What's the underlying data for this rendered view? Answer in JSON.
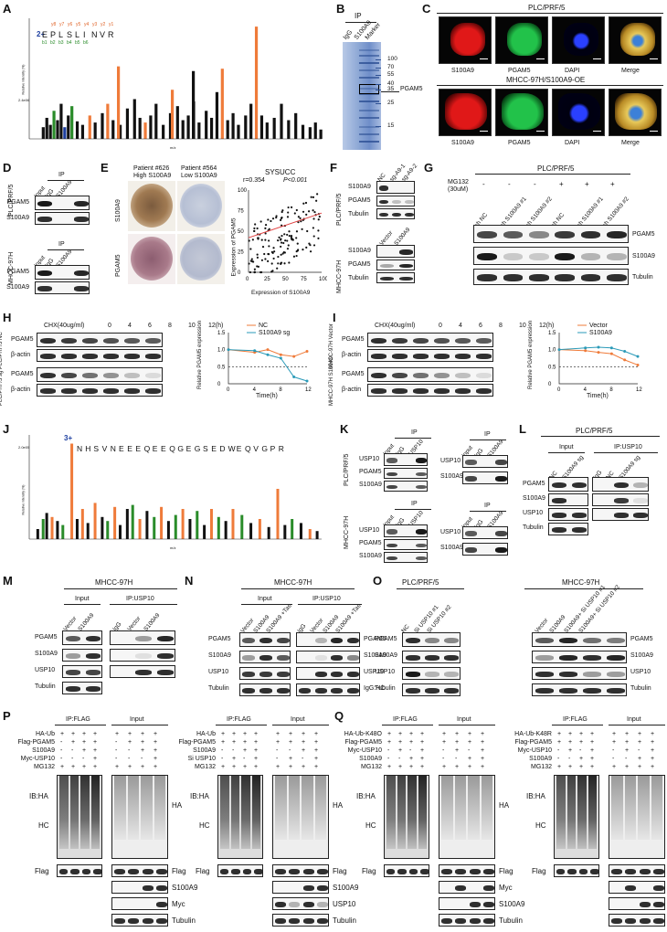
{
  "panels": [
    "A",
    "B",
    "C",
    "D",
    "E",
    "F",
    "G",
    "H",
    "I",
    "J",
    "K",
    "L",
    "M",
    "N",
    "O",
    "P",
    "Q"
  ],
  "A": {
    "charge": "2+",
    "peptide": [
      "E",
      "P",
      "L",
      "S",
      "L",
      "I",
      "N",
      "V",
      "R"
    ],
    "y_ions": [
      "y8",
      "y7",
      "y6",
      "y5",
      "y4",
      "y3",
      "y2",
      "y1"
    ],
    "b_ions": [
      "b1",
      "b2",
      "b3",
      "b4",
      "b5",
      "b6"
    ],
    "ylabel": "Relative intensity (%)",
    "xlabel": "m/z",
    "ytop": "2.4e06"
  },
  "B": {
    "ip": "IP",
    "lanes": [
      "IgG",
      "S100A9",
      "Marker"
    ],
    "markers": [
      "100",
      "70",
      "55",
      "40",
      "35",
      "25",
      "15"
    ],
    "box_label": "PGAM5"
  },
  "C": {
    "title1": "PLC/PRF/5",
    "title2": "MHCC-97H/S100A9-OE",
    "labels": [
      "S100A9",
      "PGAM5",
      "DAPI",
      "Merge"
    ]
  },
  "D": {
    "cell1": "PLC/PRF/5",
    "cell2": "MHCC-97H",
    "ip": "IP",
    "lanes": [
      "Input",
      "IgG",
      "S100A9"
    ],
    "rows": [
      "PGAM5",
      "S100A9"
    ]
  },
  "E": {
    "p1": "Patient #626",
    "p1s": "High S100A9",
    "p2": "Patient #564",
    "p2s": "Low S100A9",
    "rows": [
      "S100A9",
      "PGAM5"
    ],
    "scatter_title": "SYSUCC",
    "r": "r=0.354",
    "p": "P<0.001",
    "xlabel": "Expression of S100A9",
    "ylabel": "Expression of PGAM5",
    "xticks": [
      "0",
      "25",
      "50",
      "75",
      "100"
    ],
    "yticks": [
      "0",
      "25",
      "50",
      "75",
      "100"
    ]
  },
  "F": {
    "cell1": "PLC/PRF/5",
    "cell2": "MHCC-97H",
    "lanes1": [
      "NC",
      "sg-A9-1",
      "sg-A9-2"
    ],
    "rows1": [
      "S100A9",
      "PGAM5",
      "Tubulin"
    ],
    "lanes2": [
      "Vector",
      "S100A9"
    ],
    "rows2": [
      "S100A9",
      "PGAM5",
      "Tubulin"
    ]
  },
  "G": {
    "title": "PLC/PRF/5",
    "mg132": "MG132",
    "mg132_sub": "(30uM)",
    "signs": [
      "-",
      "-",
      "-",
      "+",
      "+",
      "+"
    ],
    "lanes": [
      "sh NC",
      "sh S100A9 #1",
      "sh S100A9 #2",
      "sh NC",
      "sh S100A9 #1",
      "sh S100A9 #2"
    ],
    "rows": [
      "PGAM5",
      "S100A9",
      "Tubulin"
    ]
  },
  "H": {
    "chx": "CHX(40ug/ml)",
    "times": [
      "0",
      "4",
      "6",
      "8",
      "10",
      "12(h)"
    ],
    "groups": [
      "PLC/PRF/5 NC",
      "PLC/PRF/5 sg"
    ],
    "rows": [
      "PGAM5",
      "β-actin"
    ],
    "ylabel": "Relative PGAM5 expression",
    "xlabel": "Time(h)",
    "legend": [
      "NC",
      "S100A9 sg"
    ]
  },
  "I": {
    "chx": "CHX(40ug/ml)",
    "times": [
      "0",
      "4",
      "6",
      "8",
      "10",
      "12(h)"
    ],
    "groups": [
      "MHCC-97H Vector",
      "MHCC-97H S100A9"
    ],
    "rows": [
      "PGAM5",
      "β-actin"
    ],
    "ylabel": "Relative PGAM5 expression",
    "xlabel": "Time(h)",
    "legend": [
      "Vector",
      "S100A9"
    ]
  },
  "J": {
    "charge": "3+",
    "peptide": [
      "N",
      "H",
      "S",
      "V",
      "N",
      "E",
      "E",
      "E",
      "Q",
      "E",
      "E",
      "Q",
      "G",
      "E",
      "G",
      "S",
      "E",
      "D",
      "W",
      "E",
      "Q",
      "V",
      "G",
      "P",
      "R"
    ],
    "ylabel": "Relative intensity (%)",
    "xlabel": "m/z",
    "ytop": "2.0e05"
  },
  "K": {
    "cell1": "PLC/PRF/5",
    "cell2": "MHCC-97H",
    "ip": "IP",
    "lanes_a": [
      "Input",
      "IgG",
      "USP10"
    ],
    "rows_a": [
      "USP10",
      "PGAM5",
      "S100A9"
    ],
    "lanes_b": [
      "Input",
      "IgG",
      "S100A9"
    ],
    "rows_b": [
      "USP10",
      "S100A9"
    ]
  },
  "L": {
    "title": "PLC/PRF/5",
    "input": "Input",
    "ipusp": "IP:USP10",
    "lanes": [
      "NC",
      "S100A9 sg",
      "IgG",
      "NC",
      "S100A9 sg"
    ],
    "rows": [
      "PGAM5",
      "S100A9",
      "USP10",
      "Tubulin"
    ]
  },
  "M": {
    "title": "MHCC-97H",
    "input": "Input",
    "ipusp": "IP:USP10",
    "lanes": [
      "Vector",
      "S100A9",
      "IgG",
      "Vector",
      "S100A9"
    ],
    "rows": [
      "PGAM5",
      "S100A9",
      "USP10",
      "Tubulin"
    ]
  },
  "N": {
    "title": "MHCC-97H",
    "input": "Input",
    "ipusp": "IP:USP10",
    "lanes": [
      "Vector",
      "S100A9",
      "S100A9 +Tas",
      "IgG",
      "Vector",
      "S100A9",
      "S100A9 +Tas"
    ],
    "rows": [
      "PGAM5",
      "S100A9",
      "USP10",
      "Tubulin"
    ],
    "rows_right": [
      "PGAM5",
      "S100A9",
      "USP10",
      "IgG:HC"
    ]
  },
  "O": {
    "cell1": "PLC/PRF/5",
    "cell2": "MHCC-97H",
    "lanes1": [
      "NC",
      "Si USP10 #1",
      "Si USP10 #2"
    ],
    "lanes2": [
      "Vector",
      "S100A9",
      "S100A9+ Si USP10 #1",
      "S100A9+ Si USP10 #2"
    ],
    "rows": [
      "PGAM5",
      "S100A9",
      "USP10",
      "Tubulin"
    ]
  },
  "P": {
    "ipflag": "IP:FLAG",
    "input": "Input",
    "conds1": [
      "HA-Ub",
      "Flag-PGAM5",
      "S100A9",
      "Myc-USP10",
      "MG132"
    ],
    "conds2": [
      "HA-Ub",
      "Flag-PGAM5",
      "S100A9",
      "Si USP10",
      "MG132"
    ],
    "signs1": [
      [
        "+",
        "+",
        "+",
        "+"
      ],
      [
        "-",
        "+",
        "+",
        "+"
      ],
      [
        "-",
        "-",
        "+",
        "+"
      ],
      [
        "-",
        "-",
        "-",
        "+"
      ],
      [
        "+",
        "+",
        "+",
        "+"
      ]
    ],
    "signs2": [
      [
        "+",
        "+",
        "+",
        "+"
      ],
      [
        "+",
        "+",
        "+",
        "+"
      ],
      [
        "-",
        "-",
        "+",
        "+"
      ],
      [
        "-",
        "+",
        "-",
        "+"
      ],
      [
        "+",
        "+",
        "+",
        "+"
      ]
    ],
    "ib": "IB:HA",
    "hc": "HC",
    "ha": "HA",
    "flag": "Flag",
    "rows1": [
      "S100A9",
      "Myc",
      "Tubulin"
    ],
    "rows2": [
      "S100A9",
      "USP10",
      "Tubulin"
    ]
  },
  "Q": {
    "ipflag": "IP:FLAG",
    "input": "Input",
    "conds1": [
      "HA-Ub-K48O",
      "Flag-PGAM5",
      "Myc-USP10",
      "S100A9",
      "MG132"
    ],
    "conds2": [
      "HA-Ub-K48R",
      "Flag-PGAM5",
      "Myc-USP10",
      "S100A9",
      "MG132"
    ],
    "signs": [
      [
        "+",
        "+",
        "+",
        "+"
      ],
      [
        "+",
        "+",
        "+",
        "+"
      ],
      [
        "-",
        "+",
        "-",
        "+"
      ],
      [
        "-",
        "-",
        "+",
        "+"
      ],
      [
        "+",
        "+",
        "+",
        "+"
      ]
    ],
    "ib": "IB:HA",
    "hc": "HC",
    "ha": "HA",
    "flag": "Flag",
    "rows": [
      "Myc",
      "S100A9",
      "Tubulin"
    ]
  }
}
